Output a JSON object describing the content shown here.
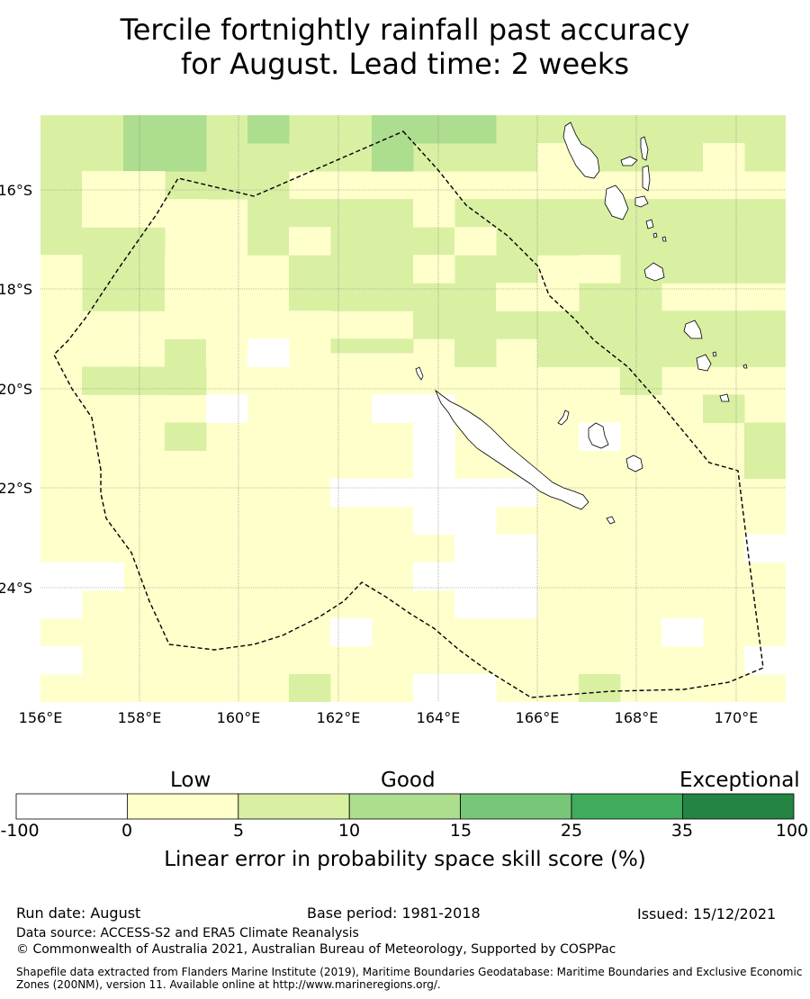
{
  "title": {
    "line1": "Tercile fortnightly rainfall past accuracy",
    "line2": "for August. Lead time: 2 weeks"
  },
  "map": {
    "lat_labels": [
      "16°S",
      "18°S",
      "20°S",
      "22°S",
      "24°S"
    ],
    "lon_labels": [
      "156°E",
      "158°E",
      "160°E",
      "162°E",
      "164°E",
      "166°E",
      "168°E",
      "170°E"
    ],
    "colors": {
      "white": "#ffffff",
      "c0_5": "#ffffcc",
      "c5_10": "#d9f0a3",
      "c10_15": "#addd8e",
      "c15_25": "#78c679",
      "c25_35": "#41ab5d",
      "c35_100": "#238443"
    }
  },
  "legend": {
    "categories": [
      "Low",
      "Good",
      "Exceptional"
    ],
    "ticks": [
      "-100",
      "0",
      "5",
      "10",
      "15",
      "25",
      "35",
      "100"
    ],
    "title": "Linear error in probability space skill score (%)"
  },
  "footer": {
    "run_date": "Run date: August",
    "base_period": "Base period: 1981-2018",
    "issued": "Issued: 15/12/2021",
    "data_source": "Data source: ACCESS-S2 and ERA5 Climate Reanalysis",
    "copyright": "© Commonwealth of Australia 2021, Australian Bureau of Meteorology, Supported by COSPPac",
    "shapefile": "Shapefile data extracted from Flanders Marine Institute (2019), Maritime Boundaries Geodatabase: Maritime Boundaries and Exclusive Economic Zones (200NM), version 11. Available online at http://www.marineregions.org/."
  }
}
